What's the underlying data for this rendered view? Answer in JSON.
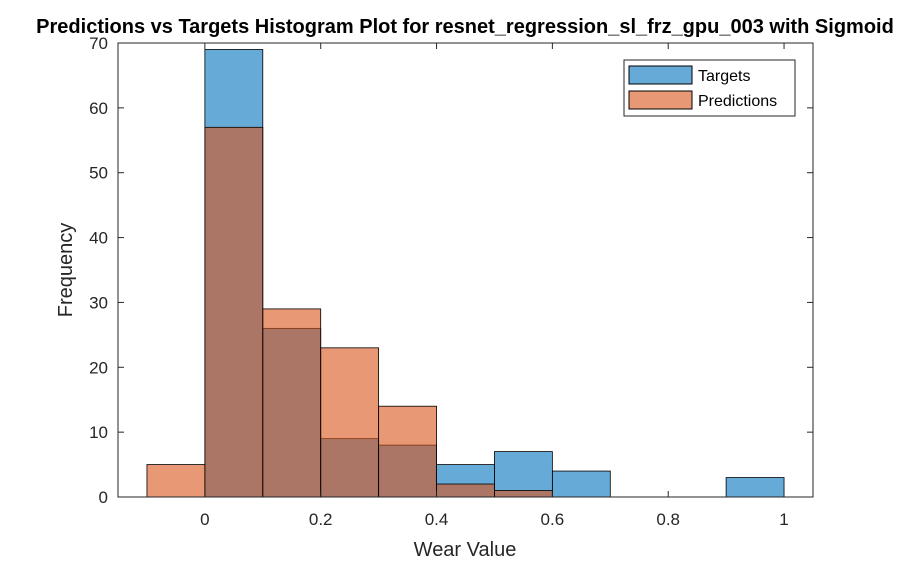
{
  "chart_data": {
    "type": "histogram",
    "title": "Predictions vs Targets Histogram Plot for resnet_regression_sl_frz_gpu_003 with Sigmoid",
    "xlabel": "Wear Value",
    "ylabel": "Frequency",
    "xlim": [
      -0.15,
      1.05
    ],
    "ylim": [
      0,
      70
    ],
    "xticks": [
      "0",
      "0.2",
      "0.4",
      "0.6",
      "0.8",
      "1"
    ],
    "yticks": [
      "0",
      "10",
      "20",
      "30",
      "40",
      "50",
      "60",
      "70"
    ],
    "xtick_values": [
      0,
      0.2,
      0.4,
      0.6,
      0.8,
      1
    ],
    "ytick_values": [
      0,
      10,
      20,
      30,
      40,
      50,
      60,
      70
    ],
    "bin_edges": [
      -0.1,
      0.0,
      0.1,
      0.2,
      0.3,
      0.4,
      0.5,
      0.6,
      0.7,
      0.8,
      0.9,
      1.0
    ],
    "series": [
      {
        "name": "Targets",
        "color": "#0072BD",
        "face_alpha": 0.6,
        "counts": [
          0,
          69,
          26,
          9,
          8,
          5,
          7,
          4,
          0,
          0,
          3
        ]
      },
      {
        "name": "Predictions",
        "color": "#D95319",
        "face_alpha": 0.6,
        "counts": [
          5,
          57,
          29,
          23,
          14,
          2,
          1,
          0,
          0,
          0,
          0
        ]
      }
    ],
    "legend_position": "top-right",
    "grid": false,
    "box": true
  }
}
